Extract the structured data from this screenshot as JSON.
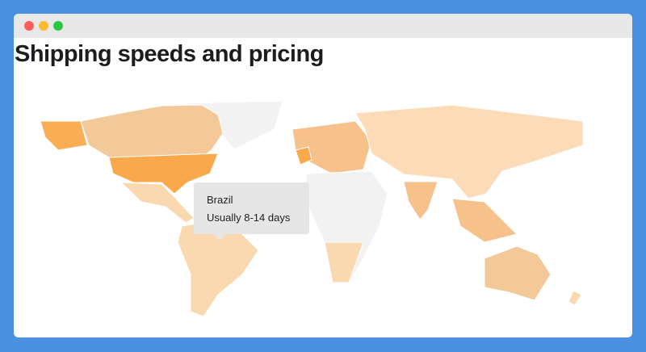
{
  "header": {
    "title": "Shipping speeds and pricing"
  },
  "tooltip": {
    "country": "Brazil",
    "text": "Usually 8-14 days"
  }
}
